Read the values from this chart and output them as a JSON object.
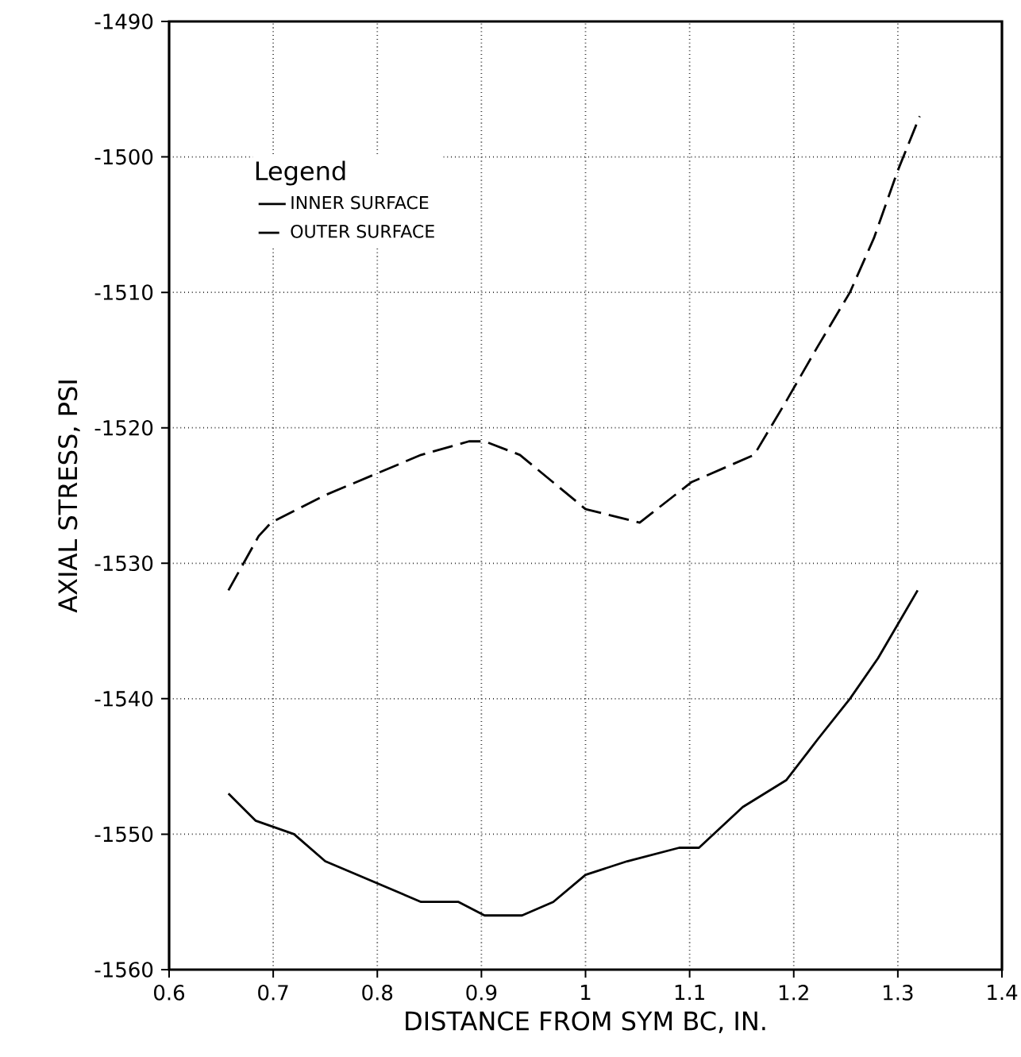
{
  "chart_data": {
    "type": "line",
    "xlabel": "DISTANCE FROM SYM BC, IN.",
    "ylabel": "AXIAL STRESS, PSI",
    "legend_title": "Legend",
    "xlim": [
      0.6,
      1.4
    ],
    "xticks": [
      0.6,
      0.7,
      0.8,
      0.9,
      1,
      1.1,
      1.2,
      1.3,
      1.4
    ],
    "ylim": [
      -1560,
      -1490
    ],
    "yticks": [
      -1560,
      -1550,
      -1540,
      -1530,
      -1520,
      -1510,
      -1500,
      -1490
    ],
    "grid": true,
    "legend": "top left",
    "series": [
      {
        "name": "INNER SURFACE",
        "color": "#000000",
        "line_style": "solid",
        "x": [
          0.657,
          0.683,
          0.72,
          0.75,
          0.842,
          0.878,
          0.903,
          0.939,
          0.969,
          1.0,
          1.04,
          1.09,
          1.109,
          1.151,
          1.193,
          1.223,
          1.254,
          1.281,
          1.319
        ],
        "values": [
          -1547,
          -1549,
          -1550,
          -1552,
          -1555,
          -1555,
          -1556,
          -1556,
          -1555,
          -1553,
          -1552,
          -1551,
          -1551,
          -1548,
          -1546,
          -1543,
          -1540,
          -1537,
          -1532
        ]
      },
      {
        "name": "OUTER SURFACE",
        "color": "#000000",
        "line_style": "dashed",
        "x": [
          0.657,
          0.686,
          0.698,
          0.749,
          0.842,
          0.888,
          0.903,
          0.937,
          1.0,
          1.052,
          1.102,
          1.162,
          1.193,
          1.223,
          1.254,
          1.277,
          1.3,
          1.321
        ],
        "values": [
          -1532,
          -1528,
          -1527,
          -1525,
          -1522,
          -1521,
          -1521,
          -1522,
          -1526,
          -1527,
          -1524,
          -1522,
          -1518,
          -1514,
          -1510,
          -1506,
          -1501,
          -1497
        ]
      }
    ]
  }
}
